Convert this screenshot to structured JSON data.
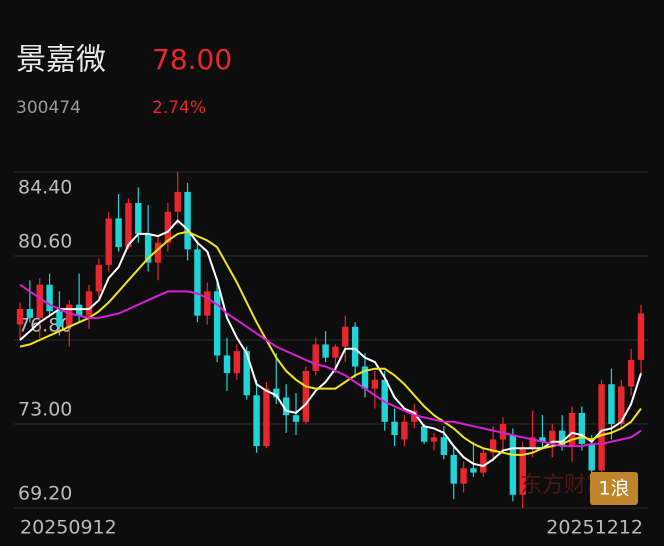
{
  "header": {
    "name": "景嘉微",
    "price": "78.00",
    "code": "300474",
    "change": "2.74%"
  },
  "chart_data": {
    "type": "candlestick",
    "categories": [
      "20250912",
      null,
      null,
      null,
      null,
      null,
      null,
      null,
      null,
      null,
      null,
      null,
      null,
      null,
      null,
      null,
      null,
      null,
      null,
      null,
      null,
      null,
      null,
      null,
      null,
      null,
      null,
      null,
      null,
      null,
      null,
      null,
      null,
      null,
      null,
      null,
      null,
      null,
      null,
      null,
      null,
      null,
      null,
      null,
      null,
      null,
      null,
      null,
      null,
      null,
      null,
      null,
      null,
      null,
      null,
      null,
      null,
      null,
      null,
      null,
      null,
      null,
      null,
      "20251212"
    ],
    "open": [
      77.5,
      78.2,
      77.8,
      79.3,
      78.1,
      77.4,
      78.4,
      77.9,
      79.0,
      80.2,
      82.3,
      81.0,
      83.0,
      81.6,
      80.3,
      81.2,
      82.6,
      83.5,
      80.9,
      77.9,
      79.0,
      76.1,
      75.3,
      76.3,
      74.3,
      72.0,
      74.6,
      74.2,
      73.4,
      73.1,
      75.4,
      76.6,
      76.0,
      76.5,
      77.4,
      75.6,
      74.6,
      75.0,
      73.1,
      72.3,
      73.1,
      72.9,
      72.2,
      72.4,
      71.6,
      70.3,
      71.0,
      70.8,
      71.7,
      72.3,
      72.5,
      69.8,
      71.9,
      72.4,
      72.2,
      72.7,
      72.0,
      73.5,
      72.1,
      70.9,
      74.8,
      73.0,
      74.7,
      75.9
    ],
    "high": [
      78.5,
      79.5,
      79.6,
      79.8,
      79.0,
      78.6,
      79.8,
      79.3,
      80.5,
      82.6,
      83.4,
      83.2,
      83.7,
      82.9,
      81.5,
      83.0,
      84.4,
      83.9,
      81.3,
      79.4,
      79.6,
      76.9,
      76.6,
      76.5,
      75.0,
      74.9,
      76.2,
      74.8,
      74.4,
      75.6,
      76.9,
      77.2,
      76.6,
      77.9,
      77.6,
      76.2,
      75.4,
      75.4,
      73.7,
      73.4,
      73.9,
      73.0,
      72.6,
      72.9,
      72.0,
      71.3,
      72.2,
      71.9,
      72.9,
      73.3,
      72.8,
      72.2,
      73.6,
      73.4,
      73.0,
      73.4,
      73.8,
      73.8,
      72.5,
      75.0,
      75.5,
      75.0,
      76.4,
      78.4
    ],
    "low": [
      76.8,
      77.6,
      76.9,
      77.9,
      77.0,
      76.5,
      77.6,
      77.3,
      78.6,
      79.9,
      80.8,
      80.9,
      81.2,
      79.9,
      79.5,
      80.8,
      82.0,
      80.4,
      77.6,
      77.5,
      75.8,
      74.5,
      75.0,
      74.1,
      71.7,
      71.9,
      73.9,
      72.6,
      72.5,
      73.0,
      75.2,
      75.8,
      75.3,
      75.8,
      75.1,
      74.2,
      73.7,
      72.7,
      72.0,
      72.0,
      72.8,
      72.1,
      71.8,
      71.4,
      69.6,
      69.9,
      70.6,
      70.6,
      71.3,
      71.8,
      69.5,
      69.2,
      71.5,
      71.9,
      71.5,
      71.8,
      71.3,
      71.8,
      70.4,
      70.7,
      72.3,
      72.8,
      74.3,
      75.3
    ],
    "close": [
      78.2,
      77.8,
      79.3,
      78.1,
      77.4,
      78.4,
      77.9,
      79.0,
      80.2,
      82.3,
      81.0,
      83.0,
      81.6,
      80.3,
      81.2,
      82.6,
      83.5,
      80.9,
      77.9,
      79.0,
      76.1,
      75.3,
      76.3,
      74.3,
      72.0,
      74.6,
      74.2,
      73.4,
      73.1,
      75.4,
      76.6,
      76.0,
      76.5,
      77.4,
      75.6,
      74.6,
      75.0,
      73.1,
      72.5,
      73.1,
      73.6,
      72.2,
      72.4,
      71.6,
      70.3,
      71.0,
      70.8,
      71.7,
      72.3,
      73.0,
      69.8,
      71.9,
      72.4,
      72.2,
      72.7,
      72.0,
      73.5,
      72.1,
      70.9,
      74.8,
      73.0,
      74.7,
      75.9,
      78.0
    ],
    "up_color": "#e8262d",
    "down_color": "#22d3d6",
    "series": [
      {
        "color": "#ffffff",
        "values": [
          76.8,
          77.2,
          77.6,
          77.9,
          78.2,
          78.2,
          78.2,
          78.2,
          78.6,
          79.6,
          80.1,
          81.1,
          81.6,
          81.6,
          81.5,
          81.7,
          82.2,
          81.8,
          81.2,
          80.8,
          79.5,
          77.8,
          76.9,
          76.2,
          74.8,
          74.5,
          74.3,
          73.6,
          73.5,
          73.9,
          74.5,
          74.9,
          75.5,
          76.4,
          76.4,
          76.0,
          75.8,
          75.1,
          74.2,
          73.7,
          73.5,
          72.9,
          72.8,
          72.6,
          72.0,
          71.5,
          71.2,
          71.1,
          71.4,
          71.8,
          71.9,
          71.9,
          71.9,
          71.9,
          72.2,
          72.2,
          72.6,
          72.5,
          72.2,
          72.7,
          72.8,
          73.1,
          73.9,
          75.3
        ]
      },
      {
        "color": "#f2e21f",
        "values": [
          76.5,
          76.6,
          76.8,
          77.0,
          77.2,
          77.4,
          77.6,
          77.8,
          78.1,
          78.5,
          79.0,
          79.5,
          80.0,
          80.5,
          80.9,
          81.3,
          81.6,
          81.7,
          81.5,
          81.3,
          81.0,
          80.2,
          79.4,
          78.5,
          77.6,
          76.8,
          76.0,
          75.4,
          75.0,
          74.7,
          74.6,
          74.6,
          74.6,
          74.9,
          75.2,
          75.4,
          75.5,
          75.5,
          75.2,
          74.8,
          74.3,
          73.8,
          73.4,
          73.1,
          72.8,
          72.4,
          72.1,
          71.9,
          71.8,
          71.7,
          71.6,
          71.6,
          71.7,
          71.9,
          72.0,
          72.1,
          72.3,
          72.4,
          72.3,
          72.5,
          72.6,
          72.8,
          73.1,
          73.7
        ]
      },
      {
        "color": "#d91fd4",
        "values": [
          79.3,
          79.0,
          78.7,
          78.4,
          78.2,
          78.0,
          77.9,
          77.8,
          77.8,
          77.9,
          78.0,
          78.2,
          78.4,
          78.6,
          78.8,
          79.0,
          79.0,
          79.0,
          78.9,
          78.7,
          78.4,
          78.0,
          77.7,
          77.4,
          77.1,
          76.8,
          76.5,
          76.3,
          76.1,
          75.9,
          75.7,
          75.6,
          75.4,
          75.2,
          74.9,
          74.6,
          74.3,
          74.0,
          73.8,
          73.6,
          73.4,
          73.3,
          73.2,
          73.1,
          73.1,
          73.0,
          72.9,
          72.8,
          72.7,
          72.6,
          72.5,
          72.4,
          72.3,
          72.2,
          72.1,
          72.0,
          72.0,
          72.0,
          72.1,
          72.1,
          72.2,
          72.3,
          72.4,
          72.7
        ]
      }
    ],
    "ylim": [
      69.2,
      84.4
    ],
    "yticks": [
      {
        "value": 69.2,
        "label": "69.20"
      },
      {
        "value": 73.0,
        "label": "73.00"
      },
      {
        "value": 76.8,
        "label": "76.80"
      },
      {
        "value": 80.6,
        "label": "80.60"
      },
      {
        "value": 84.4,
        "label": "84.40"
      }
    ],
    "watermark": "东方财富",
    "badge": "1浪"
  }
}
